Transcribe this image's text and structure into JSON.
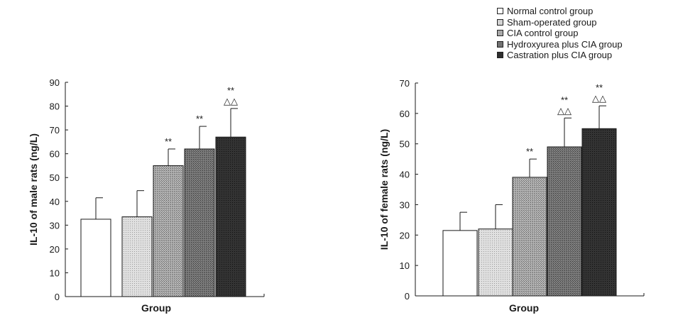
{
  "chart_data": [
    {
      "type": "bar",
      "categories": [
        "Normal control group",
        "Sham-operated group",
        "CIA control group",
        "Hydroxyurea plus CIA group",
        "Castration plus CIA group"
      ],
      "values": [
        32.5,
        33.5,
        55,
        62,
        67
      ],
      "errors": [
        9,
        11,
        7,
        9.5,
        12
      ],
      "annotations": [
        "",
        "",
        "**",
        "**",
        "**\n△△"
      ],
      "xlabel": "Group",
      "ylabel": "IL-10 of male rats (ng/L)",
      "ylim": [
        0,
        90
      ],
      "yticks": [
        0,
        10,
        20,
        30,
        40,
        50,
        60,
        70,
        80,
        90
      ]
    },
    {
      "type": "bar",
      "categories": [
        "Normal control group",
        "Sham-operated group",
        "CIA control group",
        "Hydroxyurea plus CIA group",
        "Castration plus CIA group"
      ],
      "values": [
        21.5,
        22,
        39,
        49,
        55
      ],
      "errors": [
        6,
        8,
        6,
        9.5,
        7.5
      ],
      "annotations": [
        "",
        "",
        "**",
        "**\n△△",
        "**\n△△"
      ],
      "xlabel": "Group",
      "ylabel": "IL-10 of female rats (ng/L)",
      "ylim": [
        0,
        70
      ],
      "yticks": [
        0,
        10,
        20,
        30,
        40,
        50,
        60,
        70
      ]
    }
  ],
  "legend": {
    "position": "top-right",
    "items": [
      {
        "label": "Normal control group",
        "fill": "#ffffff"
      },
      {
        "label": "Sham-operated group",
        "fill": "#d4d4d4"
      },
      {
        "label": "CIA control group",
        "fill": "#a9a9a9"
      },
      {
        "label": "Hydroxyurea plus CIA group",
        "fill": "#727272"
      },
      {
        "label": "Castration plus CIA group",
        "fill": "#2e2e2e"
      }
    ]
  },
  "colors": {
    "axis": "#1a1a1a",
    "bars": [
      "#ffffff",
      "#d4d4d4",
      "#a9a9a9",
      "#727272",
      "#2e2e2e"
    ]
  }
}
